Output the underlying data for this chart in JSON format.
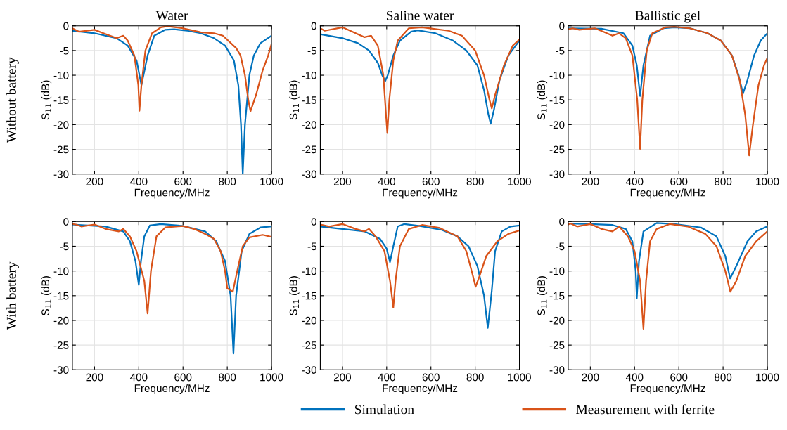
{
  "chart_data": [
    {
      "type": "line",
      "title": "Water",
      "ylabel": "S$_{11}$ (dB)",
      "xlabel": "Frequency/MHz",
      "annotations": [
        "Without battery"
      ],
      "xlim": [
        100,
        1000
      ],
      "ylim": [
        -30,
        0
      ],
      "xticks": [
        200,
        400,
        600,
        800,
        1000
      ],
      "yticks": [
        -30,
        -25,
        -20,
        -15,
        -10,
        -5,
        0
      ],
      "grid": true,
      "series": [
        {
          "color": "#0072bd",
          "x": [
            100,
            200,
            300,
            350,
            390,
            412,
            440,
            470,
            520,
            560,
            620,
            680,
            740,
            790,
            830,
            850,
            862,
            870,
            880,
            900,
            920,
            950,
            1000
          ],
          "values": [
            -1,
            -1.5,
            -2.5,
            -4,
            -7,
            -12,
            -6,
            -2,
            -0.8,
            -0.7,
            -1,
            -1.5,
            -2.5,
            -4,
            -7,
            -12,
            -20,
            -30,
            -20,
            -10,
            -6,
            -3.5,
            -2
          ]
        },
        {
          "color": "#d95319",
          "x": [
            100,
            130,
            200,
            240,
            300,
            330,
            350,
            380,
            398,
            403,
            412,
            430,
            460,
            500,
            530,
            600,
            680,
            740,
            780,
            840,
            860,
            880,
            895,
            905,
            930,
            960,
            985,
            1000
          ],
          "values": [
            -0.5,
            -1.2,
            -0.8,
            -1.5,
            -2.5,
            -2,
            -3,
            -6,
            -12,
            -17.2,
            -12,
            -5,
            -1.5,
            -0.3,
            -0.1,
            -0.5,
            -1.3,
            -1.5,
            -2,
            -4.5,
            -6,
            -10,
            -15,
            -17.3,
            -14,
            -9,
            -6,
            -3.7
          ]
        }
      ]
    },
    {
      "type": "line",
      "title": "Saline water",
      "ylabel": "S$_{11}$ (dB)",
      "xlabel": "Frequency/MHz",
      "xlim": [
        100,
        1000
      ],
      "ylim": [
        -30,
        0
      ],
      "xticks": [
        200,
        400,
        600,
        800,
        1000
      ],
      "yticks": [
        -30,
        -25,
        -20,
        -15,
        -10,
        -5,
        0
      ],
      "grid": true,
      "series": [
        {
          "color": "#0072bd",
          "x": [
            100,
            200,
            270,
            320,
            360,
            380,
            393,
            405,
            430,
            460,
            510,
            540,
            620,
            700,
            760,
            810,
            840,
            860,
            870,
            885,
            910,
            950,
            1000
          ],
          "values": [
            -1.7,
            -2.5,
            -3.5,
            -5,
            -7.5,
            -10,
            -11.2,
            -10,
            -6,
            -3,
            -1.2,
            -0.9,
            -1.5,
            -3,
            -5,
            -8,
            -13,
            -18,
            -19.8,
            -17,
            -11,
            -6,
            -3
          ]
        },
        {
          "color": "#d95319",
          "x": [
            100,
            120,
            200,
            260,
            300,
            330,
            360,
            385,
            397,
            403,
            412,
            430,
            450,
            500,
            560,
            680,
            740,
            800,
            840,
            865,
            875,
            890,
            930,
            970,
            1000
          ],
          "values": [
            -0.5,
            -1,
            -0.3,
            -1.5,
            -2.3,
            -2,
            -4,
            -10,
            -18,
            -21.7,
            -15,
            -7,
            -3,
            -0.5,
            -0.3,
            -1,
            -2,
            -5,
            -10,
            -15,
            -16.7,
            -14,
            -8,
            -4,
            -2.8
          ]
        }
      ]
    },
    {
      "type": "line",
      "title": "Ballistic gel",
      "ylabel": "S$_{11}$ (dB)",
      "xlabel": "Frequency/MHz",
      "xlim": [
        100,
        1000
      ],
      "ylim": [
        -30,
        0
      ],
      "xticks": [
        200,
        400,
        600,
        800,
        1000
      ],
      "yticks": [
        -30,
        -25,
        -20,
        -15,
        -10,
        -5,
        0
      ],
      "grid": true,
      "series": [
        {
          "color": "#0072bd",
          "x": [
            100,
            250,
            350,
            390,
            410,
            425,
            440,
            470,
            530,
            580,
            650,
            730,
            790,
            840,
            870,
            890,
            910,
            940,
            970,
            1000
          ],
          "values": [
            -0.5,
            -0.6,
            -1.5,
            -4,
            -8,
            -14.2,
            -8,
            -2,
            -0.5,
            -0.3,
            -0.5,
            -1.5,
            -3,
            -6,
            -10,
            -13.7,
            -11,
            -6,
            -3,
            -1.5
          ]
        },
        {
          "color": "#d95319",
          "x": [
            100,
            120,
            150,
            220,
            260,
            300,
            330,
            360,
            390,
            412,
            425,
            435,
            455,
            480,
            540,
            580,
            650,
            730,
            790,
            840,
            875,
            900,
            918,
            935,
            960,
            985,
            1000
          ],
          "values": [
            -0.7,
            -0.5,
            -0.8,
            -0.5,
            -1.2,
            -2,
            -1.5,
            -2.5,
            -6,
            -15,
            -24.9,
            -15,
            -5,
            -1.5,
            -0.3,
            -0.2,
            -0.5,
            -1.5,
            -3,
            -6,
            -11,
            -18,
            -26.2,
            -20,
            -12,
            -8,
            -6.5
          ]
        }
      ]
    },
    {
      "type": "line",
      "ylabel": "S$_{11}$ (dB)",
      "xlabel": "Frequency/MHz",
      "annotations": [
        "With battery"
      ],
      "xlim": [
        100,
        1000
      ],
      "ylim": [
        -30,
        0
      ],
      "xticks": [
        200,
        400,
        600,
        800,
        1000
      ],
      "yticks": [
        -30,
        -25,
        -20,
        -15,
        -10,
        -5,
        0
      ],
      "grid": true,
      "series": [
        {
          "color": "#0072bd",
          "x": [
            100,
            250,
            330,
            360,
            385,
            400,
            410,
            425,
            450,
            500,
            600,
            700,
            750,
            790,
            815,
            828,
            840,
            865,
            900,
            950,
            1000
          ],
          "values": [
            -0.6,
            -1,
            -2,
            -4,
            -8,
            -12.8,
            -8,
            -3,
            -0.8,
            -0.5,
            -0.9,
            -2,
            -4,
            -8,
            -15,
            -26.7,
            -15,
            -6,
            -2.5,
            -1.2,
            -1
          ]
        },
        {
          "color": "#d95319",
          "x": [
            100,
            115,
            140,
            200,
            250,
            310,
            330,
            360,
            390,
            425,
            440,
            455,
            480,
            520,
            600,
            650,
            700,
            740,
            770,
            790,
            800,
            825,
            845,
            870,
            900,
            960,
            1000
          ],
          "values": [
            -0.5,
            -0.6,
            -1,
            -0.6,
            -1.5,
            -2,
            -1.5,
            -3,
            -6,
            -12,
            -18.6,
            -10,
            -3,
            -1.2,
            -0.9,
            -1.5,
            -2.5,
            -3.5,
            -6,
            -10,
            -13.5,
            -14.2,
            -10,
            -5,
            -3.2,
            -2.7,
            -3.1
          ]
        }
      ]
    },
    {
      "type": "line",
      "ylabel": "S$_{11}$ (dB)",
      "xlabel": "Frequency/MHz",
      "xlim": [
        100,
        1000
      ],
      "ylim": [
        -30,
        0
      ],
      "xticks": [
        200,
        400,
        600,
        800,
        1000
      ],
      "yticks": [
        -30,
        -25,
        -20,
        -15,
        -10,
        -5,
        0
      ],
      "grid": true,
      "series": [
        {
          "color": "#0072bd",
          "x": [
            100,
            200,
            300,
            370,
            400,
            415,
            430,
            450,
            480,
            550,
            650,
            720,
            770,
            810,
            840,
            857,
            875,
            890,
            920,
            960,
            1000
          ],
          "values": [
            -1,
            -1.5,
            -2,
            -3.5,
            -5.5,
            -8.2,
            -5,
            -1,
            -0.5,
            -0.9,
            -1.7,
            -3,
            -5,
            -9,
            -15,
            -21.5,
            -14,
            -6,
            -2,
            -1,
            -0.8
          ]
        },
        {
          "color": "#d95319",
          "x": [
            100,
            140,
            200,
            260,
            300,
            320,
            350,
            390,
            415,
            430,
            440,
            460,
            500,
            560,
            640,
            720,
            760,
            790,
            802,
            820,
            850,
            900,
            950,
            1000
          ],
          "values": [
            -0.6,
            -1,
            -0.5,
            -1.5,
            -2,
            -1.5,
            -3,
            -6,
            -12,
            -17.4,
            -12,
            -5,
            -1.5,
            -0.7,
            -1.3,
            -3,
            -6,
            -11,
            -13.2,
            -11,
            -7,
            -4,
            -2.5,
            -1.8
          ]
        }
      ]
    },
    {
      "type": "line",
      "ylabel": "S$_{11}$ (dB)",
      "xlabel": "Frequency/MHz",
      "xlim": [
        100,
        1000
      ],
      "ylim": [
        -30,
        0
      ],
      "xticks": [
        200,
        400,
        600,
        800,
        1000
      ],
      "yticks": [
        -30,
        -25,
        -20,
        -15,
        -10,
        -5,
        0
      ],
      "grid": true,
      "legend": "bottom",
      "series": [
        {
          "name": "Simulation",
          "color": "#0072bd",
          "x": [
            100,
            200,
            300,
            360,
            390,
            405,
            410,
            420,
            440,
            500,
            580,
            700,
            770,
            810,
            832,
            860,
            910,
            950,
            1000
          ],
          "values": [
            -0.4,
            -0.5,
            -0.7,
            -1.5,
            -4,
            -10,
            -15.5,
            -8,
            -2,
            -0.3,
            -0.5,
            -1.2,
            -3,
            -7,
            -11.5,
            -9,
            -4,
            -2,
            -1
          ]
        },
        {
          "name": "Measurement with ferrite",
          "color": "#d95319",
          "x": [
            100,
            110,
            140,
            200,
            250,
            300,
            330,
            370,
            400,
            425,
            440,
            452,
            470,
            500,
            560,
            640,
            720,
            770,
            810,
            833,
            860,
            900,
            950,
            1000
          ],
          "values": [
            -0.6,
            -0.4,
            -1,
            -0.5,
            -1.5,
            -2,
            -1,
            -3,
            -6,
            -12,
            -21.7,
            -12,
            -4,
            -1.5,
            -0.5,
            -1,
            -2.5,
            -5,
            -10,
            -14.2,
            -12,
            -7,
            -4,
            -2
          ]
        }
      ]
    }
  ]
}
